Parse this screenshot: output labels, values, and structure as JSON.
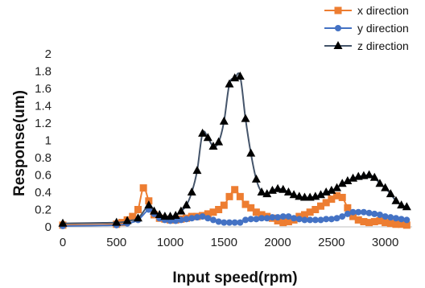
{
  "chart_data": {
    "type": "line",
    "title": "",
    "xlabel": "Input speed(rpm)",
    "ylabel": "Response(um)",
    "xlim": [
      0,
      3250
    ],
    "ylim": [
      0,
      2
    ],
    "xticks": [
      0,
      500,
      1000,
      1500,
      2000,
      2500,
      3000
    ],
    "yticks": [
      0,
      0.2,
      0.4,
      0.6,
      0.8,
      1,
      1.2,
      1.4,
      1.6,
      1.8,
      2
    ],
    "ytick_labels": [
      "0",
      "0.2",
      "0.4",
      "0.6",
      "0.8",
      "1",
      "1.2",
      "1.4",
      "1.6",
      "1.8",
      "2"
    ],
    "grid": "none",
    "legend": "top-right",
    "series": [
      {
        "name": "x direction",
        "color": "#ED7D31",
        "marker": "square",
        "x": [
          0,
          500,
          550,
          600,
          650,
          700,
          750,
          800,
          850,
          900,
          950,
          1000,
          1050,
          1100,
          1150,
          1200,
          1250,
          1300,
          1350,
          1400,
          1450,
          1500,
          1550,
          1600,
          1650,
          1700,
          1750,
          1800,
          1850,
          1900,
          1950,
          2000,
          2050,
          2100,
          2150,
          2200,
          2250,
          2300,
          2350,
          2400,
          2450,
          2500,
          2550,
          2600,
          2650,
          2700,
          2750,
          2800,
          2850,
          2900,
          2950,
          3000,
          3050,
          3100,
          3150,
          3200
        ],
        "y": [
          0.02,
          0.03,
          0.05,
          0.08,
          0.12,
          0.2,
          0.45,
          0.3,
          0.14,
          0.1,
          0.09,
          0.08,
          0.08,
          0.09,
          0.1,
          0.12,
          0.12,
          0.13,
          0.15,
          0.17,
          0.2,
          0.25,
          0.35,
          0.43,
          0.35,
          0.26,
          0.22,
          0.17,
          0.14,
          0.12,
          0.1,
          0.07,
          0.05,
          0.06,
          0.08,
          0.12,
          0.14,
          0.17,
          0.2,
          0.24,
          0.28,
          0.32,
          0.36,
          0.34,
          0.22,
          0.12,
          0.08,
          0.06,
          0.05,
          0.06,
          0.07,
          0.05,
          0.04,
          0.03,
          0.03,
          0.02
        ]
      },
      {
        "name": "y direction",
        "color": "#4472C4",
        "marker": "circle",
        "x": [
          0,
          500,
          600,
          700,
          800,
          850,
          900,
          950,
          1000,
          1050,
          1100,
          1150,
          1200,
          1250,
          1300,
          1350,
          1400,
          1450,
          1500,
          1550,
          1600,
          1650,
          1700,
          1750,
          1800,
          1850,
          1900,
          1950,
          2000,
          2050,
          2100,
          2150,
          2200,
          2250,
          2300,
          2350,
          2400,
          2450,
          2500,
          2550,
          2600,
          2650,
          2700,
          2750,
          2800,
          2850,
          2900,
          2950,
          3000,
          3050,
          3100,
          3150,
          3200
        ],
        "y": [
          0.01,
          0.02,
          0.04,
          0.08,
          0.2,
          0.15,
          0.1,
          0.08,
          0.07,
          0.07,
          0.08,
          0.09,
          0.1,
          0.11,
          0.12,
          0.1,
          0.08,
          0.06,
          0.05,
          0.05,
          0.05,
          0.05,
          0.08,
          0.09,
          0.09,
          0.1,
          0.1,
          0.11,
          0.11,
          0.12,
          0.12,
          0.1,
          0.09,
          0.08,
          0.08,
          0.08,
          0.08,
          0.09,
          0.09,
          0.1,
          0.12,
          0.15,
          0.17,
          0.17,
          0.17,
          0.16,
          0.15,
          0.14,
          0.12,
          0.11,
          0.1,
          0.09,
          0.08
        ]
      },
      {
        "name": "z direction",
        "color": "#000000",
        "line_color": "#44546A",
        "marker": "triangle",
        "x": [
          0,
          500,
          600,
          700,
          800,
          850,
          900,
          950,
          1000,
          1050,
          1100,
          1150,
          1200,
          1250,
          1300,
          1350,
          1400,
          1450,
          1500,
          1550,
          1600,
          1650,
          1700,
          1750,
          1800,
          1850,
          1900,
          1950,
          2000,
          2050,
          2100,
          2150,
          2200,
          2250,
          2300,
          2350,
          2400,
          2450,
          2500,
          2550,
          2600,
          2650,
          2700,
          2750,
          2800,
          2850,
          2900,
          2950,
          3000,
          3050,
          3100,
          3150,
          3200
        ],
        "y": [
          0.04,
          0.05,
          0.07,
          0.1,
          0.25,
          0.18,
          0.14,
          0.12,
          0.12,
          0.13,
          0.18,
          0.25,
          0.4,
          0.65,
          1.08,
          1.03,
          0.93,
          0.98,
          1.22,
          1.65,
          1.72,
          1.74,
          1.25,
          0.85,
          0.55,
          0.4,
          0.38,
          0.42,
          0.44,
          0.43,
          0.4,
          0.37,
          0.35,
          0.34,
          0.34,
          0.35,
          0.37,
          0.4,
          0.42,
          0.45,
          0.5,
          0.53,
          0.56,
          0.58,
          0.59,
          0.6,
          0.57,
          0.5,
          0.45,
          0.38,
          0.3,
          0.25,
          0.23
        ]
      }
    ]
  }
}
